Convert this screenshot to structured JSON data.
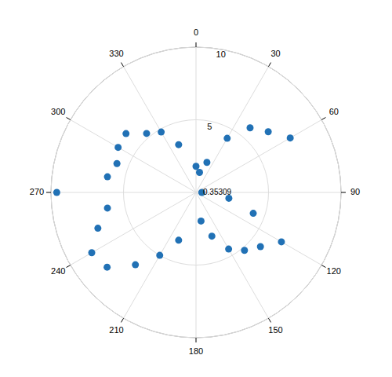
{
  "chart_data": {
    "type": "polar",
    "x": [
      0,
      10,
      20,
      30,
      40,
      50,
      60,
      90,
      100,
      110,
      120,
      130,
      140,
      150,
      160,
      170,
      200,
      210,
      220,
      230,
      240,
      250,
      260,
      270,
      280,
      290,
      300,
      310,
      320,
      330,
      340
    ],
    "values": [
      1.8,
      1.4,
      2.2,
      4.3,
      5.8,
      6.5,
      7.5,
      0.4,
      2.3,
      4.2,
      6.8,
      5.8,
      5.2,
      4.5,
      3.2,
      2.0,
      3.5,
      5.0,
      6.5,
      8.0,
      8.3,
      7.2,
      6.2,
      9.6,
      6.2,
      5.8,
      6.2,
      6.3,
      5.3,
      4.8,
      3.5
    ],
    "color": "#2171b5",
    "xlim": [
      0,
      360
    ],
    "xticks": [
      0,
      30,
      60,
      90,
      120,
      150,
      180,
      210,
      240,
      270,
      300,
      330
    ],
    "ylim": [
      0,
      10
    ],
    "yticks": [
      5,
      10
    ],
    "annotations": [
      "0.35309"
    ],
    "grid": true
  }
}
